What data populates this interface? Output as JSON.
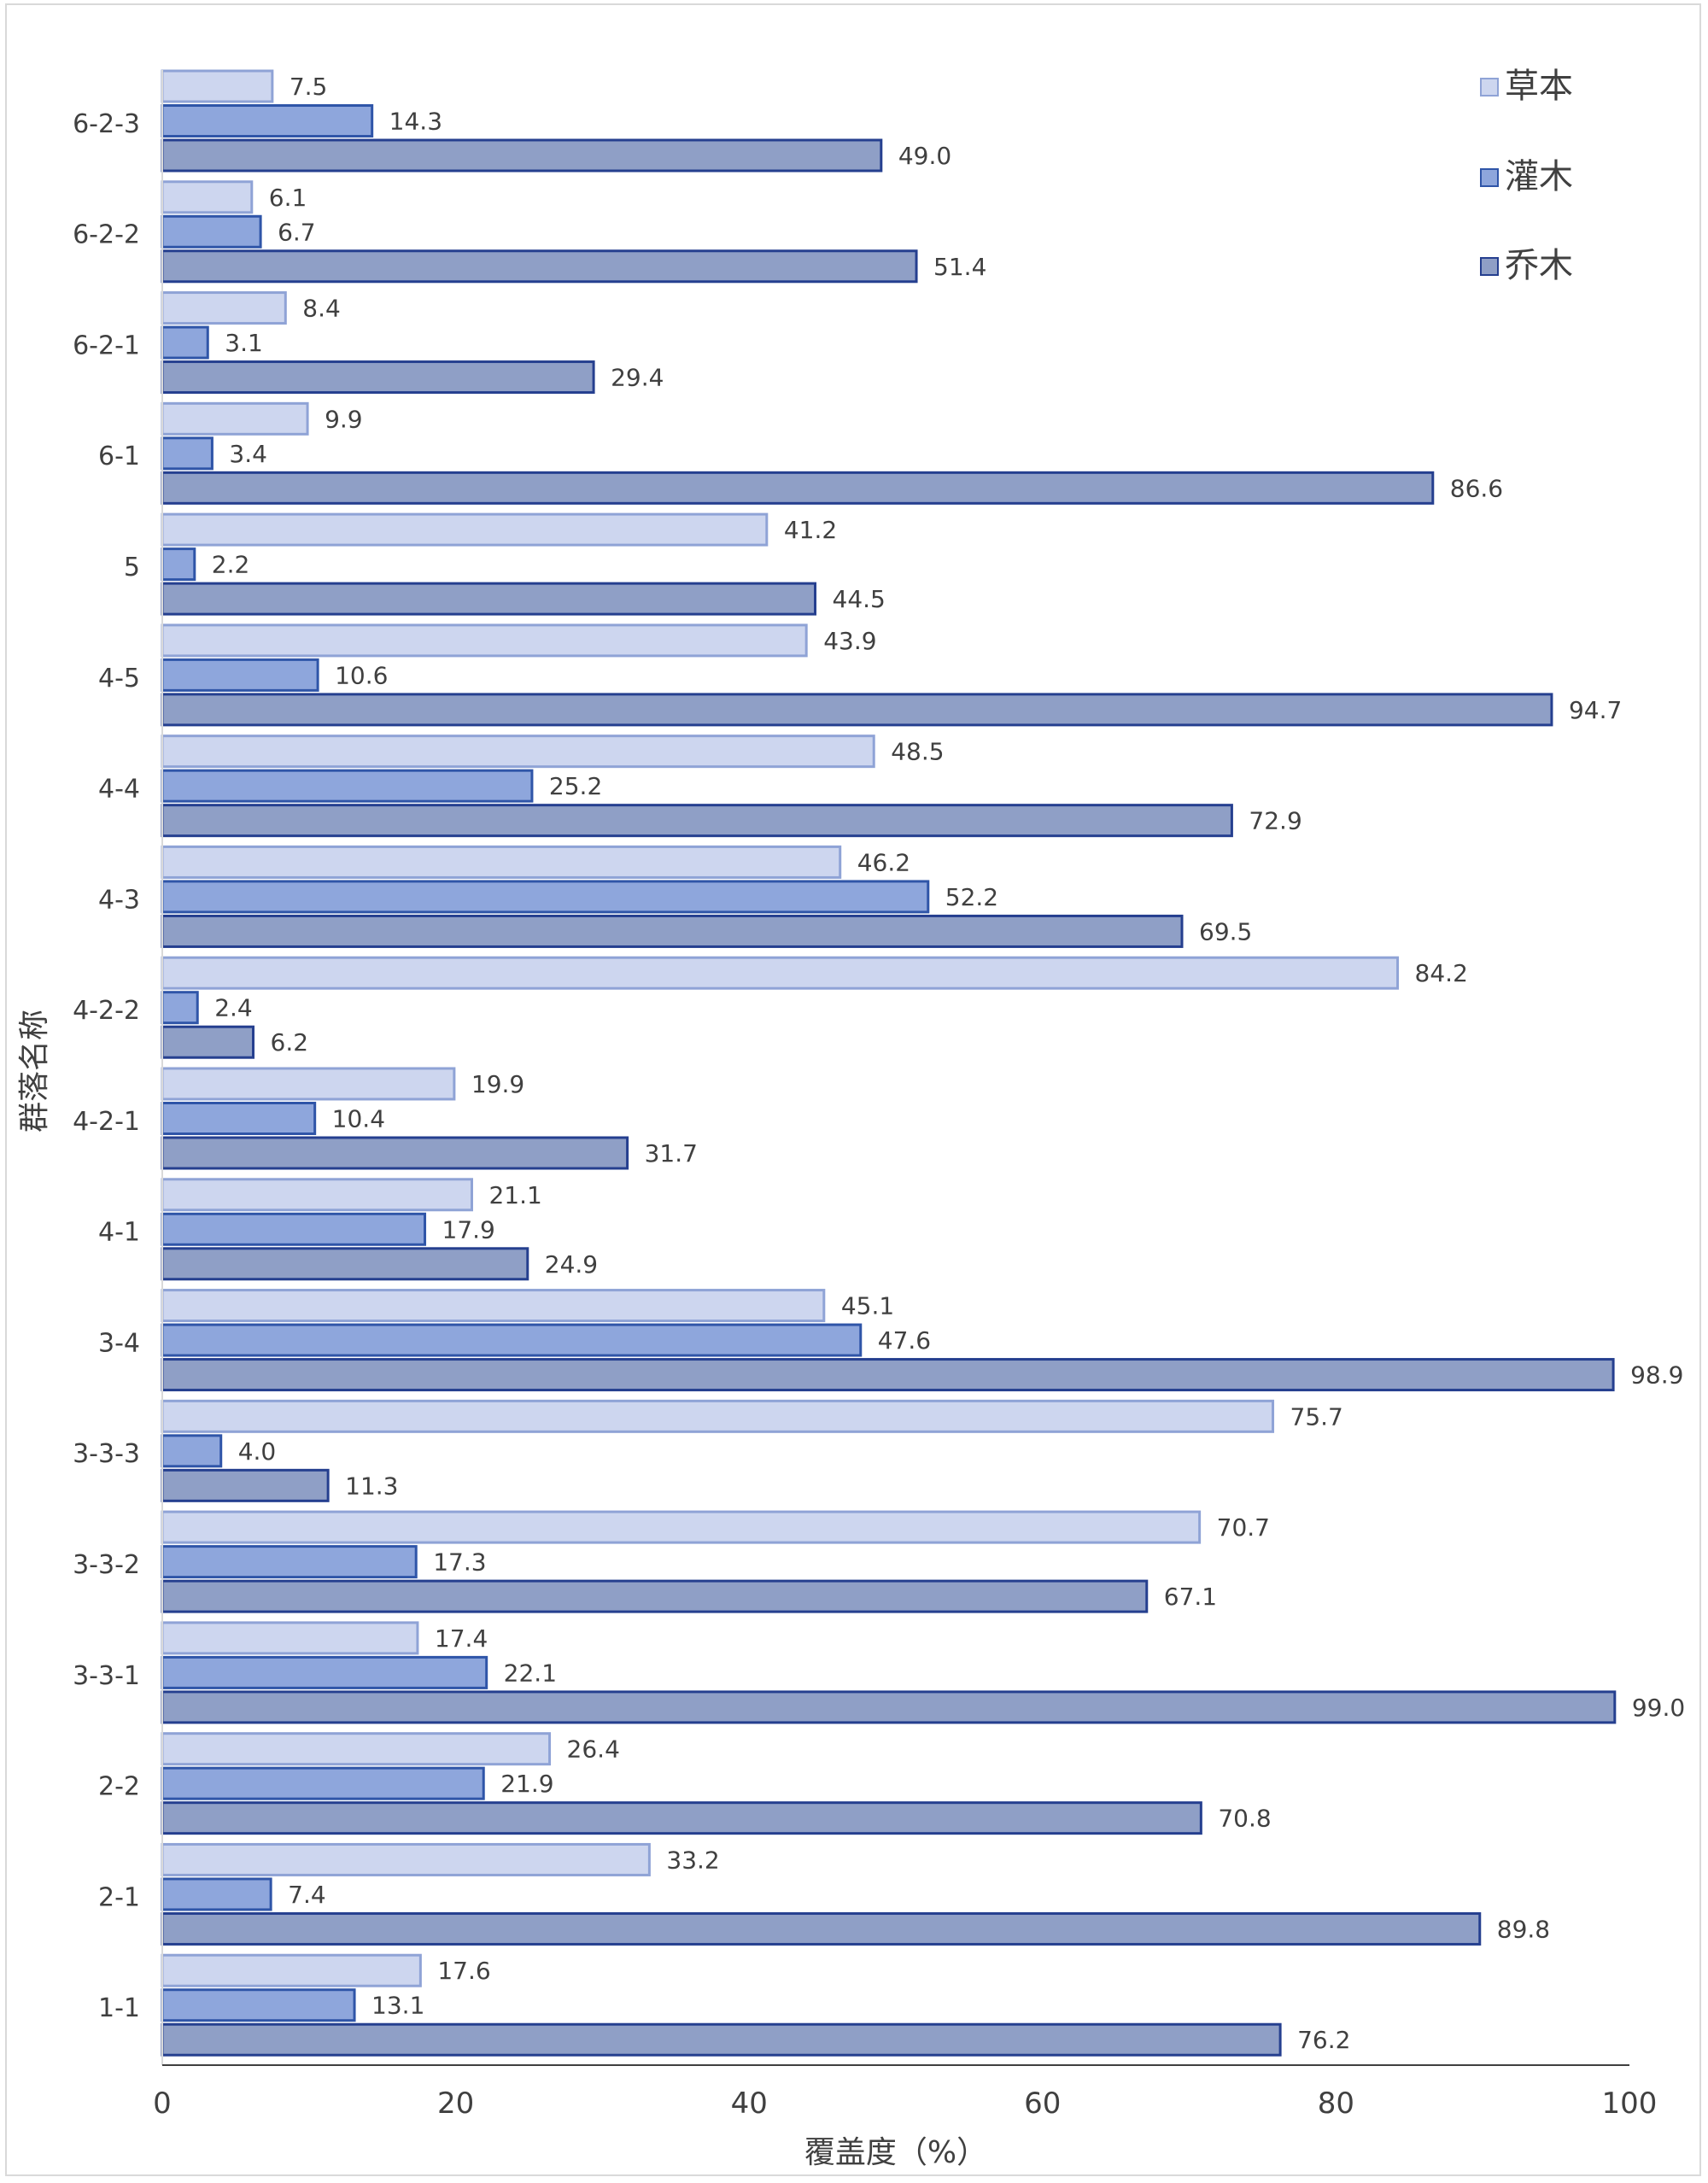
{
  "chart_data": {
    "type": "bar",
    "orientation": "horizontal",
    "categories": [
      "6-2-3",
      "6-2-2",
      "6-2-1",
      "6-1",
      "5",
      "4-5",
      "4-4",
      "4-3",
      "4-2-2",
      "4-2-1",
      "4-1",
      "3-4",
      "3-3-3",
      "3-3-2",
      "3-3-1",
      "2-2",
      "2-1",
      "1-1"
    ],
    "series": [
      {
        "name": "草本",
        "color": "#cdd6ef",
        "border": "#8fa3d6",
        "values": [
          7.5,
          6.1,
          8.4,
          9.9,
          41.2,
          43.9,
          48.5,
          46.2,
          84.2,
          19.9,
          21.1,
          45.1,
          75.7,
          70.7,
          17.4,
          26.4,
          33.2,
          17.6
        ]
      },
      {
        "name": "灌木",
        "color": "#8ea6dc",
        "border": "#2f55a8",
        "values": [
          14.3,
          6.7,
          3.1,
          3.4,
          2.2,
          10.6,
          25.2,
          52.2,
          2.4,
          10.4,
          17.9,
          47.6,
          4.0,
          17.3,
          22.1,
          21.9,
          7.4,
          13.1
        ]
      },
      {
        "name": "乔木",
        "color": "#8f9fc6",
        "border": "#253f8f",
        "values": [
          49.0,
          51.4,
          29.4,
          86.6,
          44.5,
          94.7,
          72.9,
          69.5,
          6.2,
          31.7,
          24.9,
          98.9,
          11.3,
          67.1,
          99.0,
          70.8,
          89.8,
          76.2
        ]
      }
    ],
    "xlabel": "覆盖度（%）",
    "ylabel": "群落名称",
    "xlim": [
      0,
      100
    ],
    "xticks": [
      0,
      20,
      40,
      60,
      80,
      100
    ],
    "grid": false,
    "legend_position": "top-right"
  }
}
